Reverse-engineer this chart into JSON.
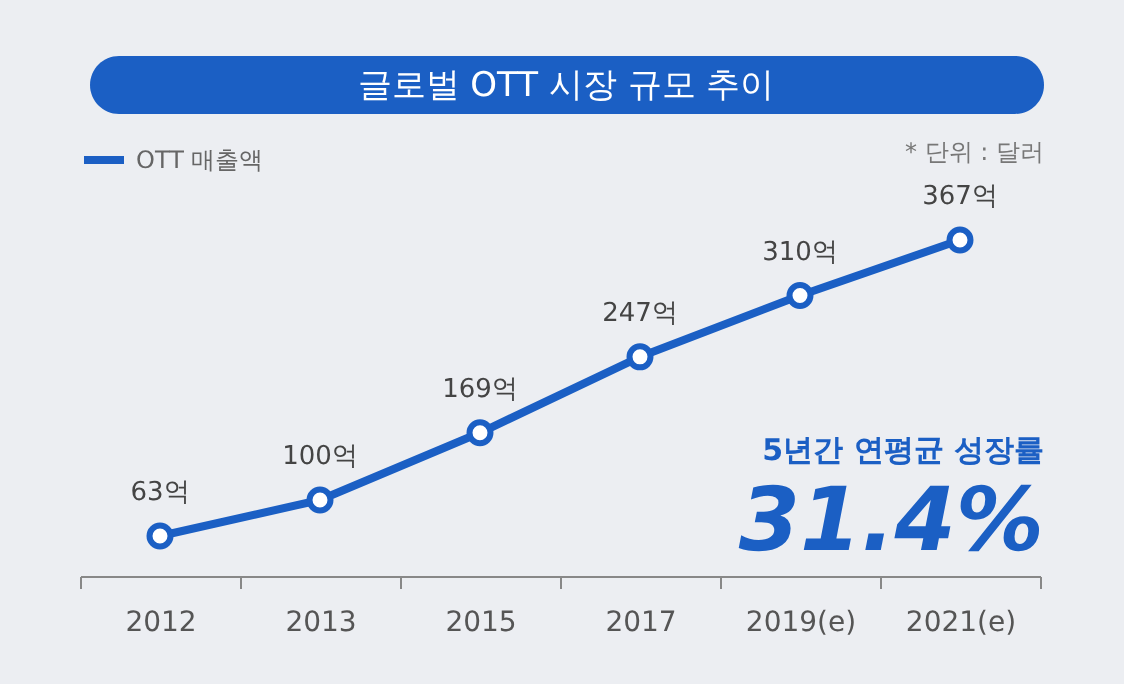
{
  "chart_data": {
    "type": "line",
    "title": "글로벌 OTT 시장 규모 추이",
    "categories": [
      "2012",
      "2013",
      "2015",
      "2017",
      "2019(e)",
      "2021(e)"
    ],
    "series": [
      {
        "name": "OTT 매출액",
        "color": "#1b5fc4",
        "values": [
          63,
          100,
          169,
          247,
          310,
          367
        ],
        "value_labels": [
          "63억",
          "100억",
          "169억",
          "247억",
          "310억",
          "367억"
        ]
      }
    ],
    "annotations": [
      "* 단위 :  달러",
      "5년간 연평균 성장률",
      "31.4%"
    ],
    "legend": "top left",
    "marker": "circle",
    "line_style": "solid",
    "grid": false,
    "tick_labels": "x"
  }
}
